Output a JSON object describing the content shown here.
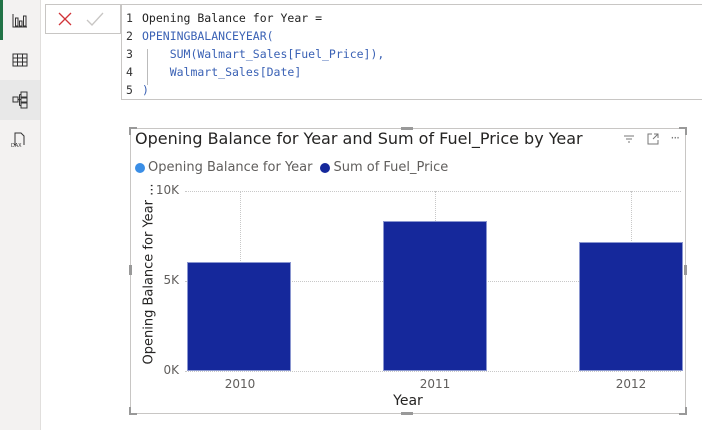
{
  "sidebar": {
    "items": [
      {
        "name": "report-view",
        "icon": "bar-chart-icon"
      },
      {
        "name": "table-view",
        "icon": "table-grid-icon"
      },
      {
        "name": "model-view",
        "icon": "model-diagram-icon"
      },
      {
        "name": "dax-query-view",
        "icon": "dax-file-icon"
      }
    ]
  },
  "formula_bar": {
    "cancel_icon": "x-icon",
    "commit_icon": "checkmark-icon",
    "lines": [
      {
        "num": "1",
        "text": "Opening Balance for Year ="
      },
      {
        "num": "2",
        "text": "OPENINGBALANCEYEAR("
      },
      {
        "num": "3",
        "text": "    SUM(Walmart_Sales[Fuel_Price]),"
      },
      {
        "num": "4",
        "text": "    Walmart_Sales[Date]"
      },
      {
        "num": "5",
        "text": ")"
      }
    ]
  },
  "visual": {
    "title": "Opening Balance for Year and Sum of Fuel_Price by Year",
    "header_icons": [
      "filter-icon",
      "focus-mode-icon",
      "more-options-icon"
    ],
    "legend": [
      {
        "label": "Opening Balance for Year",
        "color": "#3a8ee6"
      },
      {
        "label": "Sum of Fuel_Price",
        "color": "#15289b"
      }
    ]
  },
  "chart_data": {
    "type": "bar",
    "title": "Opening Balance for Year and Sum of Fuel_Price by Year",
    "categories": [
      "2010",
      "2011",
      "2012"
    ],
    "series": [
      {
        "name": "Opening Balance for Year",
        "values": [
          null,
          null,
          null
        ],
        "color": "#3a8ee6"
      },
      {
        "name": "Sum of Fuel_Price",
        "values": [
          6050,
          8330,
          7170
        ],
        "color": "#15289b"
      }
    ],
    "xlabel": "Year",
    "ylabel": "Opening Balance for Year ...",
    "yticks": [
      "0K",
      "5K",
      "10K"
    ],
    "ylim": [
      0,
      10000
    ],
    "grid": true,
    "legend_position": "top-left"
  }
}
